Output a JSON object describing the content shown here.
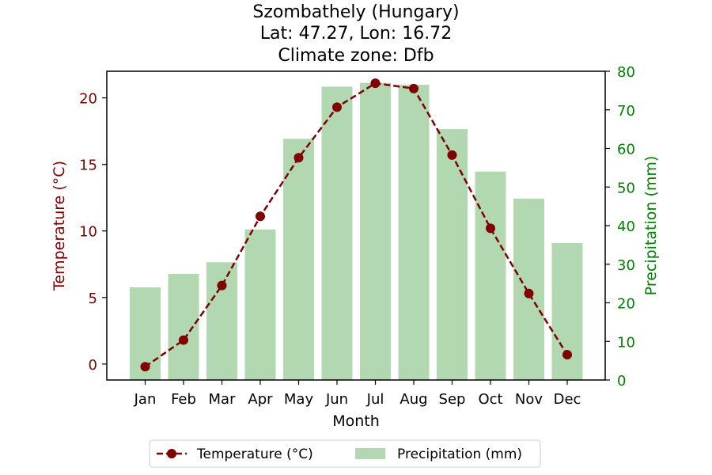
{
  "chart_data": {
    "type": "bar+line",
    "title": [
      "Szombathely (Hungary)",
      "Lat: 47.27, Lon: 16.72",
      "Climate zone: Dfb"
    ],
    "categories": [
      "Jan",
      "Feb",
      "Mar",
      "Apr",
      "May",
      "Jun",
      "Jul",
      "Aug",
      "Sep",
      "Oct",
      "Nov",
      "Dec"
    ],
    "xlabel": "Month",
    "ylabel_left": "Temperature (°C)",
    "ylabel_right": "Precipitation (mm)",
    "ylim_left": [
      -1.2,
      22
    ],
    "ylim_right": [
      0,
      80
    ],
    "yticks_left": [
      0,
      5,
      10,
      15,
      20
    ],
    "yticks_right": [
      0,
      10,
      20,
      30,
      40,
      50,
      60,
      70,
      80
    ],
    "grid": false,
    "legend_position": "bottom-center",
    "series": [
      {
        "name": "Temperature (°C)",
        "type": "line",
        "style": "dashed-with-circle-markers",
        "axis": "left",
        "values": [
          -0.2,
          1.8,
          5.9,
          11.1,
          15.5,
          19.3,
          21.1,
          20.7,
          15.7,
          10.2,
          5.3,
          0.7
        ]
      },
      {
        "name": "Precipitation (mm)",
        "type": "bar",
        "axis": "right",
        "values": [
          24,
          27.5,
          30.5,
          39,
          62.5,
          76,
          77,
          76.5,
          65,
          54,
          47,
          35.5
        ]
      }
    ],
    "colors": {
      "temperature": "#800000",
      "precipitation": "#b2d8b2",
      "right_axis": "#008000",
      "left_axis": "#800000"
    }
  }
}
